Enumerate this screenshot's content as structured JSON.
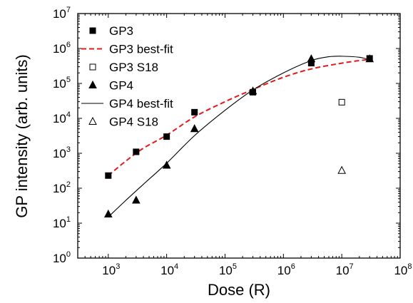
{
  "chart_data": {
    "type": "scatter",
    "xlabel": "Dose (R)",
    "ylabel": "GP intensity (arb. units)",
    "x_scale": "log",
    "y_scale": "log",
    "xlim": [
      300,
      100000000
    ],
    "ylim": [
      1,
      10000000
    ],
    "x_ticks": [
      1000,
      10000,
      100000,
      1000000,
      10000000,
      100000000
    ],
    "x_tick_labels": [
      {
        "base": "10",
        "exp": "3"
      },
      {
        "base": "10",
        "exp": "4"
      },
      {
        "base": "10",
        "exp": "5"
      },
      {
        "base": "10",
        "exp": "6"
      },
      {
        "base": "10",
        "exp": "7"
      },
      {
        "base": "10",
        "exp": "8"
      }
    ],
    "y_ticks": [
      1,
      10,
      100,
      1000,
      10000,
      100000,
      1000000,
      10000000
    ],
    "y_tick_labels": [
      {
        "base": "10",
        "exp": "0"
      },
      {
        "base": "10",
        "exp": "1"
      },
      {
        "base": "10",
        "exp": "2"
      },
      {
        "base": "10",
        "exp": "3"
      },
      {
        "base": "10",
        "exp": "4"
      },
      {
        "base": "10",
        "exp": "5"
      },
      {
        "base": "10",
        "exp": "6"
      },
      {
        "base": "10",
        "exp": "7"
      }
    ],
    "grid": false,
    "legend_position": "top-left",
    "series": [
      {
        "name": "GP3",
        "kind": "points",
        "marker": "filled-square",
        "color": "#000000",
        "points": [
          [
            1000,
            230
          ],
          [
            3000,
            1100
          ],
          [
            10000,
            3000
          ],
          [
            30000,
            15000
          ],
          [
            300000,
            56000
          ],
          [
            3000000,
            380000
          ],
          [
            30000000,
            520000
          ]
        ]
      },
      {
        "name": "GP3 best-fit",
        "kind": "line",
        "style": "dashed",
        "color": "#e31a1c",
        "points": [
          [
            1000,
            230
          ],
          [
            2000,
            600
          ],
          [
            4000,
            1400
          ],
          [
            10000,
            3300
          ],
          [
            30000,
            11000
          ],
          [
            100000,
            30000
          ],
          [
            300000,
            67000
          ],
          [
            1000000,
            150000
          ],
          [
            3000000,
            260000
          ],
          [
            10000000,
            380000
          ],
          [
            20000000,
            450000
          ],
          [
            30000000,
            480000
          ]
        ]
      },
      {
        "name": "GP3 S18",
        "kind": "points",
        "marker": "open-square",
        "color": "#000000",
        "points": [
          [
            10000000,
            29000
          ]
        ]
      },
      {
        "name": "GP4",
        "kind": "points",
        "marker": "filled-triangle",
        "color": "#000000",
        "points": [
          [
            1000,
            18
          ],
          [
            3000,
            45
          ],
          [
            10000,
            450
          ],
          [
            30000,
            5000
          ],
          [
            300000,
            60000
          ],
          [
            3000000,
            500000
          ],
          [
            30000000,
            500000
          ]
        ]
      },
      {
        "name": "GP4 best-fit",
        "kind": "line",
        "style": "solid",
        "color": "#000000",
        "points": [
          [
            1000,
            15
          ],
          [
            2000,
            45
          ],
          [
            4000,
            130
          ],
          [
            10000,
            520
          ],
          [
            30000,
            3200
          ],
          [
            100000,
            17000
          ],
          [
            300000,
            65000
          ],
          [
            1000000,
            200000
          ],
          [
            3000000,
            450000
          ],
          [
            6000000,
            580000
          ],
          [
            10000000,
            600000
          ],
          [
            20000000,
            560000
          ],
          [
            30000000,
            470000
          ]
        ]
      },
      {
        "name": "GP4 S18",
        "kind": "points",
        "marker": "open-triangle",
        "color": "#000000",
        "points": [
          [
            10000000,
            320
          ]
        ]
      }
    ]
  }
}
